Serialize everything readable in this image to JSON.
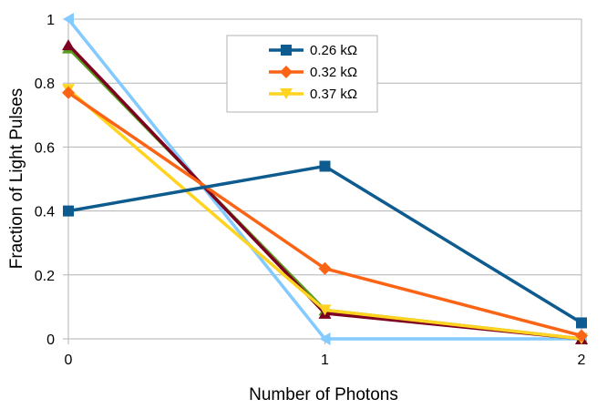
{
  "chart_data": {
    "type": "line",
    "title": "",
    "xlabel": "Number of Photons",
    "ylabel": "Fraction of Light Pulses",
    "x": [
      0,
      1,
      2
    ],
    "x_tick_labels": [
      "0",
      "1",
      "2"
    ],
    "y_tick_labels": [
      "0",
      "0.2",
      "0.4",
      "0.6",
      "0.8",
      "1"
    ],
    "ylim": [
      0,
      1
    ],
    "grid": "horizontal",
    "legend_position": "top-center",
    "series": [
      {
        "name": "0.26 kΩ",
        "values": [
          0.4,
          0.54,
          0.05
        ],
        "color": "#0d5b8f",
        "marker": "square",
        "legend": true
      },
      {
        "name": "0.32 kΩ",
        "values": [
          0.77,
          0.22,
          0.01
        ],
        "color": "#fb6414",
        "marker": "diamond",
        "legend": true
      },
      {
        "name": "0.37 kΩ",
        "values": [
          0.78,
          0.09,
          0.0
        ],
        "color": "#ffd320",
        "marker": "triangle-down",
        "legend": true
      },
      {
        "name": "",
        "values": [
          0.92,
          0.08,
          0.0
        ],
        "color": "#7e0021",
        "marker": "triangle-up",
        "legend": false
      },
      {
        "name": "",
        "values": [
          0.91,
          0.09,
          0.0
        ],
        "color": "#579d1c",
        "marker": "triangle-up",
        "legend": false
      },
      {
        "name": "",
        "values": [
          1.0,
          0.0,
          0.0
        ],
        "color": "#83caff",
        "marker": "triangle-left",
        "legend": false
      }
    ]
  }
}
